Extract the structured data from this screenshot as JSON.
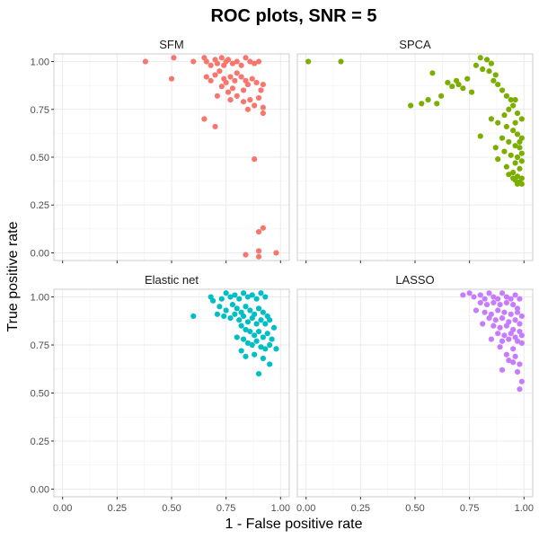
{
  "chart_data": {
    "type": "scatter",
    "title": "ROC plots, SNR = 5",
    "xlabel": "1 - False positive rate",
    "ylabel": "True positive rate",
    "xlim": [
      -0.04,
      1.04
    ],
    "ylim": [
      -0.04,
      1.04
    ],
    "x_ticks": [
      "0.00",
      "0.25",
      "0.50",
      "0.75",
      "1.00"
    ],
    "y_ticks": [
      "0.00",
      "0.25",
      "0.50",
      "0.75",
      "1.00"
    ],
    "grid": true,
    "legend": "none",
    "panels": [
      {
        "name": "SFM",
        "color": "#F8766D",
        "points": [
          [
            0.38,
            1.0
          ],
          [
            0.51,
            1.02
          ],
          [
            0.5,
            0.91
          ],
          [
            0.6,
            1.0
          ],
          [
            0.65,
            1.02
          ],
          [
            0.66,
            1.0
          ],
          [
            0.68,
            0.98
          ],
          [
            0.7,
            1.01
          ],
          [
            0.71,
            0.99
          ],
          [
            0.73,
            1.02
          ],
          [
            0.74,
            0.98
          ],
          [
            0.75,
            1.0
          ],
          [
            0.76,
            1.01
          ],
          [
            0.78,
            0.99
          ],
          [
            0.8,
            1.0
          ],
          [
            0.82,
            0.98
          ],
          [
            0.84,
            1.02
          ],
          [
            0.86,
            1.0
          ],
          [
            0.88,
            0.99
          ],
          [
            0.9,
            1.0
          ],
          [
            0.7,
            0.93
          ],
          [
            0.72,
            0.95
          ],
          [
            0.74,
            0.91
          ],
          [
            0.75,
            0.89
          ],
          [
            0.77,
            0.92
          ],
          [
            0.79,
            0.9
          ],
          [
            0.8,
            0.94
          ],
          [
            0.82,
            0.92
          ],
          [
            0.84,
            0.9
          ],
          [
            0.85,
            0.88
          ],
          [
            0.87,
            0.91
          ],
          [
            0.89,
            0.89
          ],
          [
            0.68,
            0.9
          ],
          [
            0.66,
            0.92
          ],
          [
            0.73,
            0.87
          ],
          [
            0.78,
            0.86
          ],
          [
            0.83,
            0.85
          ],
          [
            0.91,
            0.85
          ],
          [
            0.92,
            0.88
          ],
          [
            0.8,
            0.82
          ],
          [
            0.76,
            0.84
          ],
          [
            0.86,
            0.8
          ],
          [
            0.88,
            0.77
          ],
          [
            0.9,
            0.81
          ],
          [
            0.92,
            0.76
          ],
          [
            0.85,
            0.75
          ],
          [
            0.77,
            0.8
          ],
          [
            0.83,
            0.79
          ],
          [
            0.71,
            0.82
          ],
          [
            0.92,
            0.73
          ],
          [
            0.65,
            0.7
          ],
          [
            0.7,
            0.66
          ],
          [
            0.88,
            0.49
          ],
          [
            0.92,
            0.13
          ],
          [
            0.9,
            0.11
          ],
          [
            0.9,
            0.01
          ],
          [
            0.98,
            0.0
          ],
          [
            0.84,
            -0.01
          ],
          [
            0.9,
            -0.02
          ]
        ]
      },
      {
        "name": "SPCA",
        "color": "#7CAE00",
        "points": [
          [
            0.01,
            1.0
          ],
          [
            0.16,
            1.0
          ],
          [
            0.58,
            0.94
          ],
          [
            0.48,
            0.77
          ],
          [
            0.53,
            0.78
          ],
          [
            0.56,
            0.8
          ],
          [
            0.6,
            0.78
          ],
          [
            0.62,
            0.82
          ],
          [
            0.65,
            0.89
          ],
          [
            0.67,
            0.87
          ],
          [
            0.69,
            0.9
          ],
          [
            0.7,
            0.88
          ],
          [
            0.72,
            0.86
          ],
          [
            0.74,
            0.91
          ],
          [
            0.76,
            0.84
          ],
          [
            0.8,
            1.02
          ],
          [
            0.83,
            1.01
          ],
          [
            0.85,
            0.99
          ],
          [
            0.78,
            0.98
          ],
          [
            0.81,
            0.96
          ],
          [
            0.84,
            0.95
          ],
          [
            0.87,
            0.93
          ],
          [
            0.86,
            0.9
          ],
          [
            0.88,
            0.88
          ],
          [
            0.9,
            0.85
          ],
          [
            0.92,
            0.82
          ],
          [
            0.94,
            0.8
          ],
          [
            0.96,
            0.8
          ],
          [
            0.95,
            0.77
          ],
          [
            0.93,
            0.75
          ],
          [
            0.97,
            0.73
          ],
          [
            0.91,
            0.72
          ],
          [
            0.85,
            0.7
          ],
          [
            0.88,
            0.68
          ],
          [
            0.92,
            0.66
          ],
          [
            0.95,
            0.64
          ],
          [
            0.97,
            0.62
          ],
          [
            0.99,
            0.6
          ],
          [
            0.8,
            0.61
          ],
          [
            0.9,
            0.6
          ],
          [
            0.93,
            0.58
          ],
          [
            0.96,
            0.56
          ],
          [
            0.98,
            0.55
          ],
          [
            0.87,
            0.55
          ],
          [
            0.91,
            0.53
          ],
          [
            0.94,
            0.51
          ],
          [
            0.97,
            0.5
          ],
          [
            0.99,
            0.48
          ],
          [
            0.88,
            0.49
          ],
          [
            0.96,
            0.47
          ],
          [
            0.92,
            0.45
          ],
          [
            0.98,
            0.44
          ],
          [
            0.95,
            0.42
          ],
          [
            0.93,
            0.41
          ],
          [
            0.97,
            0.4
          ],
          [
            0.99,
            0.39
          ],
          [
            0.96,
            0.38
          ],
          [
            0.98,
            0.37
          ],
          [
            0.99,
            0.36
          ],
          [
            0.97,
            0.36
          ],
          [
            0.95,
            0.39
          ],
          [
            0.99,
            0.52
          ],
          [
            0.98,
            0.58
          ],
          [
            0.96,
            0.68
          ],
          [
            0.99,
            0.7
          ]
        ]
      },
      {
        "name": "Elastic net",
        "color": "#00BFC4",
        "points": [
          [
            0.6,
            0.9
          ],
          [
            0.68,
            1.0
          ],
          [
            0.69,
            0.98
          ],
          [
            0.73,
            0.99
          ],
          [
            0.75,
            1.02
          ],
          [
            0.77,
            1.0
          ],
          [
            0.79,
            1.01
          ],
          [
            0.81,
            0.99
          ],
          [
            0.83,
            1.02
          ],
          [
            0.85,
            1.0
          ],
          [
            0.87,
            1.01
          ],
          [
            0.89,
            0.99
          ],
          [
            0.91,
            1.02
          ],
          [
            0.93,
            1.0
          ],
          [
            0.72,
            0.95
          ],
          [
            0.75,
            0.93
          ],
          [
            0.78,
            0.96
          ],
          [
            0.8,
            0.94
          ],
          [
            0.82,
            0.92
          ],
          [
            0.84,
            0.95
          ],
          [
            0.86,
            0.93
          ],
          [
            0.88,
            0.91
          ],
          [
            0.9,
            0.94
          ],
          [
            0.92,
            0.92
          ],
          [
            0.94,
            0.9
          ],
          [
            0.71,
            0.91
          ],
          [
            0.74,
            0.9
          ],
          [
            0.77,
            0.89
          ],
          [
            0.79,
            0.91
          ],
          [
            0.81,
            0.88
          ],
          [
            0.83,
            0.9
          ],
          [
            0.85,
            0.87
          ],
          [
            0.87,
            0.89
          ],
          [
            0.89,
            0.86
          ],
          [
            0.91,
            0.88
          ],
          [
            0.93,
            0.86
          ],
          [
            0.95,
            0.88
          ],
          [
            0.97,
            0.84
          ],
          [
            0.82,
            0.85
          ],
          [
            0.84,
            0.83
          ],
          [
            0.86,
            0.82
          ],
          [
            0.88,
            0.8
          ],
          [
            0.9,
            0.82
          ],
          [
            0.92,
            0.79
          ],
          [
            0.94,
            0.81
          ],
          [
            0.96,
            0.78
          ],
          [
            0.8,
            0.79
          ],
          [
            0.83,
            0.78
          ],
          [
            0.85,
            0.76
          ],
          [
            0.87,
            0.75
          ],
          [
            0.89,
            0.77
          ],
          [
            0.91,
            0.74
          ],
          [
            0.93,
            0.73
          ],
          [
            0.95,
            0.75
          ],
          [
            0.98,
            0.73
          ],
          [
            0.82,
            0.72
          ],
          [
            0.84,
            0.69
          ],
          [
            0.88,
            0.7
          ],
          [
            0.92,
            0.68
          ],
          [
            0.95,
            0.65
          ],
          [
            0.9,
            0.6
          ]
        ]
      },
      {
        "name": "LASSO",
        "color": "#C77CFF",
        "points": [
          [
            0.72,
            1.01
          ],
          [
            0.75,
            1.02
          ],
          [
            0.77,
            1.0
          ],
          [
            0.8,
            1.01
          ],
          [
            0.82,
            0.99
          ],
          [
            0.84,
            1.02
          ],
          [
            0.86,
            1.0
          ],
          [
            0.88,
            0.99
          ],
          [
            0.9,
            1.02
          ],
          [
            0.92,
            1.0
          ],
          [
            0.94,
            0.99
          ],
          [
            0.96,
            1.01
          ],
          [
            0.98,
            0.99
          ],
          [
            0.8,
            0.97
          ],
          [
            0.83,
            0.96
          ],
          [
            0.86,
            0.97
          ],
          [
            0.89,
            0.96
          ],
          [
            0.92,
            0.97
          ],
          [
            0.95,
            0.96
          ],
          [
            0.97,
            0.94
          ],
          [
            0.78,
            0.93
          ],
          [
            0.82,
            0.92
          ],
          [
            0.85,
            0.91
          ],
          [
            0.88,
            0.93
          ],
          [
            0.91,
            0.92
          ],
          [
            0.94,
            0.91
          ],
          [
            0.97,
            0.92
          ],
          [
            0.99,
            0.9
          ],
          [
            0.84,
            0.89
          ],
          [
            0.87,
            0.88
          ],
          [
            0.9,
            0.89
          ],
          [
            0.93,
            0.87
          ],
          [
            0.96,
            0.88
          ],
          [
            0.98,
            0.86
          ],
          [
            0.81,
            0.86
          ],
          [
            0.86,
            0.85
          ],
          [
            0.89,
            0.84
          ],
          [
            0.92,
            0.85
          ],
          [
            0.95,
            0.83
          ],
          [
            0.98,
            0.82
          ],
          [
            0.88,
            0.81
          ],
          [
            0.91,
            0.8
          ],
          [
            0.94,
            0.81
          ],
          [
            0.96,
            0.79
          ],
          [
            0.99,
            0.8
          ],
          [
            0.85,
            0.78
          ],
          [
            0.9,
            0.77
          ],
          [
            0.93,
            0.78
          ],
          [
            0.97,
            0.77
          ],
          [
            0.99,
            0.76
          ],
          [
            0.89,
            0.74
          ],
          [
            0.95,
            0.73
          ],
          [
            0.92,
            0.7
          ],
          [
            0.96,
            0.69
          ],
          [
            0.93,
            0.67
          ],
          [
            0.95,
            0.66
          ],
          [
            0.98,
            0.65
          ],
          [
            0.9,
            0.62
          ],
          [
            0.97,
            0.61
          ],
          [
            0.99,
            0.56
          ],
          [
            0.98,
            0.52
          ]
        ]
      }
    ]
  }
}
